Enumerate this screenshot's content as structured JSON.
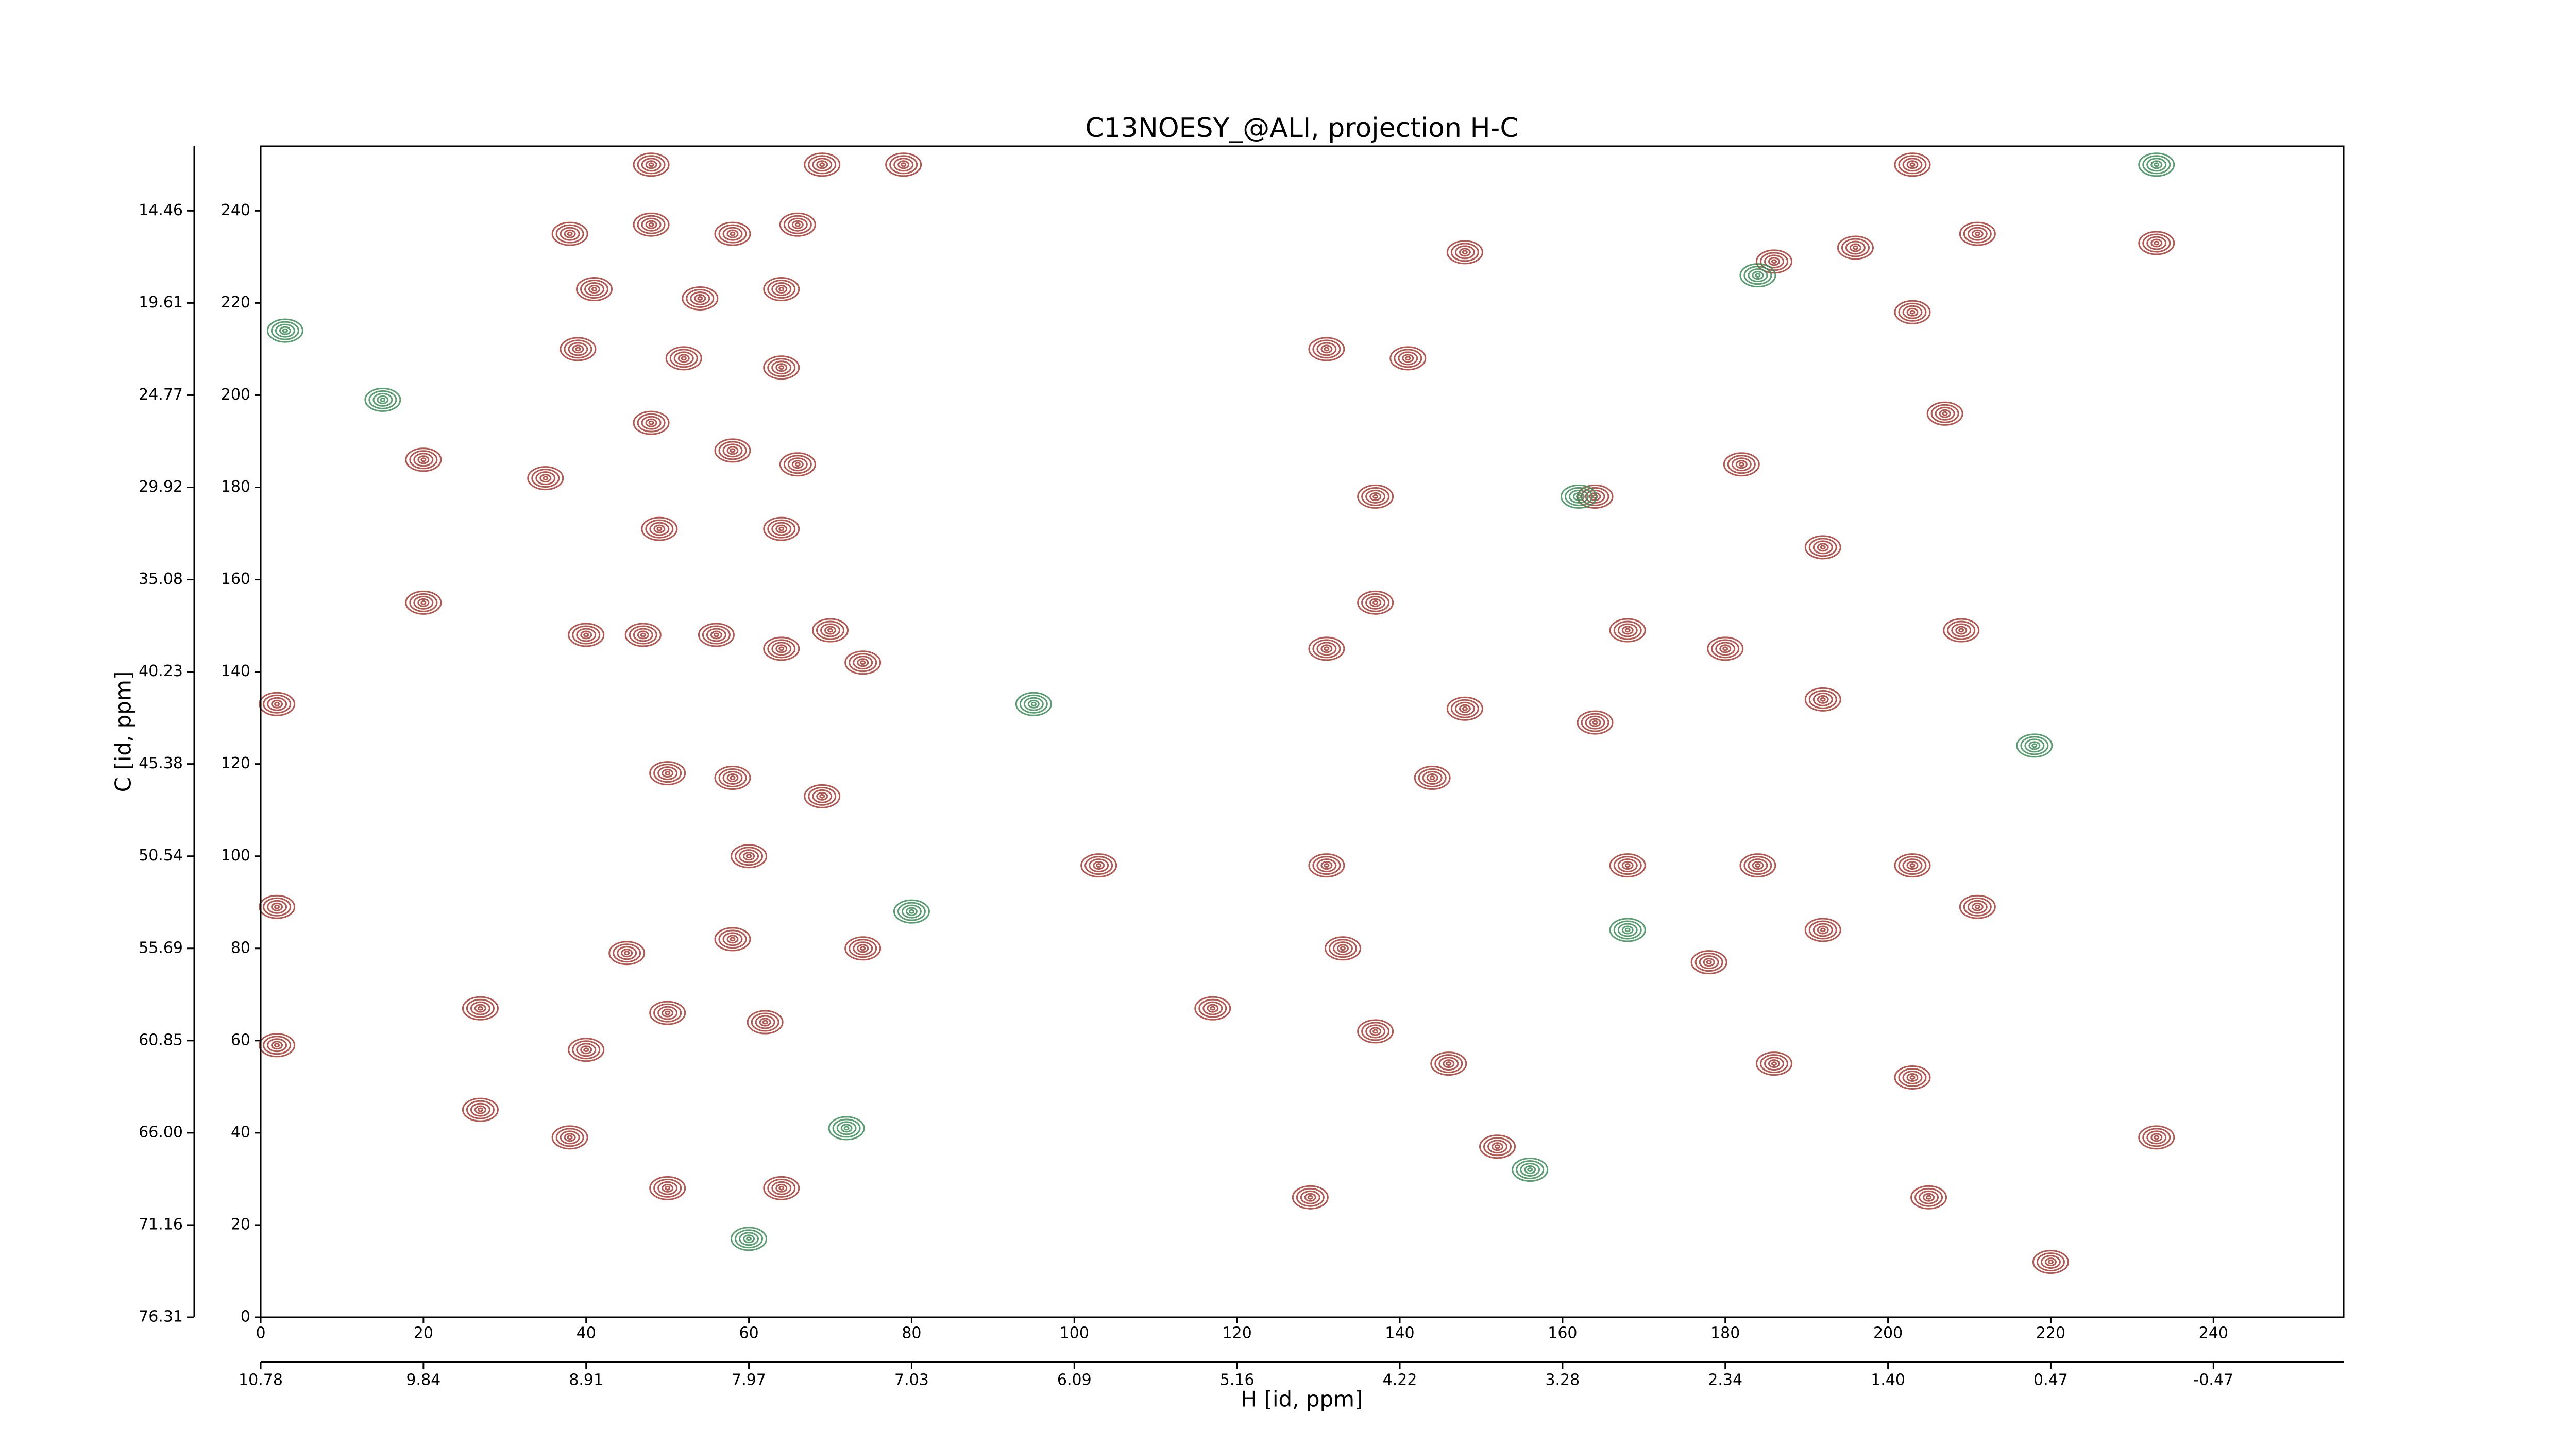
{
  "chart_data": {
    "type": "contour",
    "title": "C13NOESY_@ALI, projection H-C",
    "xlabel": "H [id, ppm]",
    "ylabel": "C [id, ppm]",
    "xlim": [
      0,
      256
    ],
    "ylim": [
      0,
      254
    ],
    "xticks": [
      0,
      20,
      40,
      60,
      80,
      100,
      120,
      140,
      160,
      180,
      200,
      220,
      240
    ],
    "yticks": [
      0,
      20,
      40,
      60,
      80,
      100,
      120,
      140,
      160,
      180,
      200,
      220,
      240
    ],
    "x2ticks": [
      {
        "value": 0,
        "label": "10.78"
      },
      {
        "value": 20,
        "label": "9.84"
      },
      {
        "value": 40,
        "label": "8.91"
      },
      {
        "value": 60,
        "label": "7.97"
      },
      {
        "value": 80,
        "label": "7.03"
      },
      {
        "value": 100,
        "label": "6.09"
      },
      {
        "value": 120,
        "label": "5.16"
      },
      {
        "value": 140,
        "label": "4.22"
      },
      {
        "value": 160,
        "label": "3.28"
      },
      {
        "value": 180,
        "label": "2.34"
      },
      {
        "value": 200,
        "label": "1.40"
      },
      {
        "value": 220,
        "label": "0.47"
      },
      {
        "value": 240,
        "label": "-0.47"
      }
    ],
    "y2ticks": [
      {
        "value": 0,
        "label": "76.31"
      },
      {
        "value": 20,
        "label": "71.16"
      },
      {
        "value": 40,
        "label": "66.00"
      },
      {
        "value": 60,
        "label": "60.85"
      },
      {
        "value": 80,
        "label": "55.69"
      },
      {
        "value": 100,
        "label": "50.54"
      },
      {
        "value": 120,
        "label": "45.38"
      },
      {
        "value": 140,
        "label": "40.23"
      },
      {
        "value": 160,
        "label": "35.08"
      },
      {
        "value": 180,
        "label": "29.92"
      },
      {
        "value": 200,
        "label": "24.77"
      },
      {
        "value": 220,
        "label": "19.61"
      },
      {
        "value": 240,
        "label": "14.46"
      }
    ],
    "series": [
      {
        "color": "#a63a33",
        "x": [
          48,
          69,
          79,
          2,
          2,
          2,
          20,
          20,
          27,
          27,
          35,
          40,
          47,
          56,
          64,
          70,
          74,
          50,
          58,
          69,
          60,
          103,
          117,
          38,
          48,
          58,
          66,
          41,
          54,
          64,
          39,
          52,
          64,
          48,
          58,
          66,
          49,
          64,
          58,
          45,
          74,
          50,
          62,
          40,
          50,
          64,
          38,
          131,
          133,
          137,
          146,
          152,
          129,
          144,
          131,
          137,
          148,
          131,
          141,
          137,
          148,
          164,
          164,
          168,
          186,
          196,
          203,
          211,
          207,
          182,
          192,
          180,
          192,
          209,
          184,
          203,
          211,
          192,
          186,
          203,
          205,
          233,
          233,
          220,
          203,
          168,
          178
        ],
        "y": [
          250,
          250,
          250,
          133,
          59,
          89,
          186,
          155,
          67,
          45,
          182,
          148,
          148,
          148,
          145,
          149,
          142,
          118,
          117,
          113,
          100,
          98,
          67,
          235,
          237,
          235,
          237,
          223,
          221,
          223,
          210,
          208,
          206,
          194,
          188,
          185,
          171,
          171,
          82,
          79,
          80,
          66,
          64,
          58,
          28,
          28,
          39,
          98,
          80,
          62,
          55,
          37,
          26,
          117,
          145,
          155,
          132,
          210,
          208,
          178,
          231,
          178,
          129,
          149,
          229,
          232,
          218,
          235,
          196,
          185,
          167,
          145,
          134,
          149,
          98,
          98,
          89,
          84,
          55,
          52,
          26,
          233,
          39,
          12,
          250,
          98,
          77
        ]
      },
      {
        "color": "#3c8c58",
        "x": [
          95,
          80,
          60,
          72,
          233,
          184,
          162,
          168,
          156,
          218,
          3,
          15
        ],
        "y": [
          133,
          88,
          17,
          41,
          250,
          226,
          178,
          84,
          32,
          124,
          214,
          199
        ]
      }
    ]
  }
}
